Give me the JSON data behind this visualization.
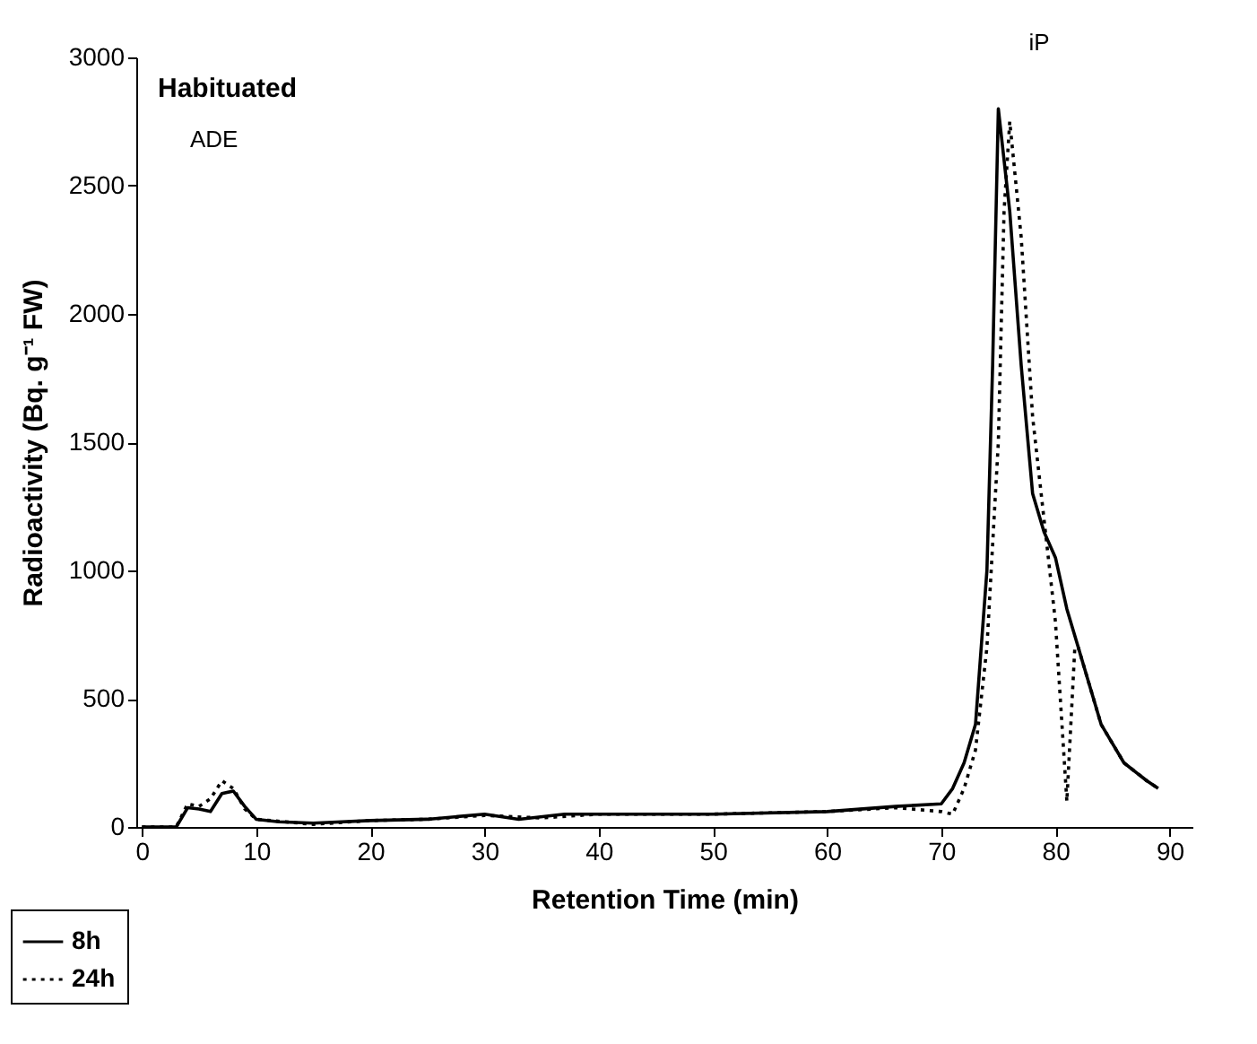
{
  "chart_data": {
    "type": "line",
    "xlabel": "Retention Time (min)",
    "ylabel": "Radioactivity (Bq. g⁻¹ FW)",
    "xlim": [
      -0.5,
      92
    ],
    "ylim": [
      0,
      3000
    ],
    "xticks": [
      0,
      10,
      20,
      30,
      40,
      50,
      60,
      70,
      80,
      90
    ],
    "yticks": [
      0,
      500,
      1000,
      1500,
      2000,
      2500,
      3000
    ],
    "grid": false,
    "legend": "bottom left",
    "marker": "none",
    "annotations": [
      "Habituated",
      "ADE",
      "iP"
    ],
    "series": [
      {
        "name": "8h",
        "color": "#000000",
        "line_style": "solid",
        "x": [
          0,
          3,
          4,
          5,
          6,
          7,
          8,
          9,
          10,
          12,
          15,
          20,
          25,
          30,
          33,
          37,
          40,
          50,
          60,
          66,
          70,
          71,
          72,
          73,
          74,
          74.5,
          75,
          76,
          77,
          78,
          79,
          80,
          81,
          82,
          84,
          86,
          88,
          89
        ],
        "values": [
          0,
          0,
          75,
          70,
          60,
          130,
          140,
          80,
          30,
          20,
          15,
          25,
          30,
          50,
          30,
          50,
          50,
          50,
          60,
          80,
          90,
          150,
          250,
          400,
          1000,
          1800,
          2800,
          2400,
          1800,
          1300,
          1150,
          1050,
          850,
          700,
          400,
          250,
          180,
          150
        ]
      },
      {
        "name": "24h",
        "color": "#000000",
        "line_style": "dotted",
        "x": [
          0,
          3,
          4,
          5,
          6,
          7,
          8,
          9,
          10,
          15,
          20,
          25,
          30,
          35,
          40,
          50,
          60,
          66,
          70,
          71,
          72,
          73,
          74,
          75,
          75.5,
          76,
          77,
          78,
          79,
          80,
          81,
          81.7,
          82,
          84,
          86,
          88,
          89
        ],
        "values": [
          0,
          0,
          90,
          80,
          110,
          180,
          150,
          70,
          30,
          10,
          25,
          30,
          45,
          35,
          50,
          50,
          60,
          75,
          60,
          50,
          150,
          300,
          700,
          1500,
          2400,
          2750,
          2300,
          1600,
          1200,
          800,
          100,
          700,
          700,
          400,
          250,
          180,
          150
        ]
      }
    ]
  }
}
